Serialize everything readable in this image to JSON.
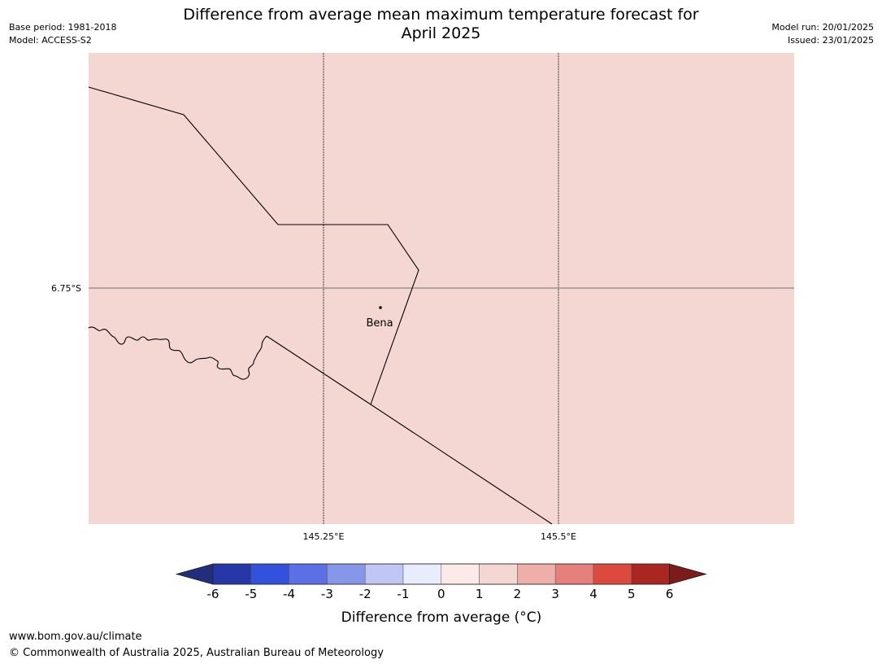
{
  "header": {
    "title_line1": "Difference from average mean maximum temperature forecast for",
    "title_line2": "April 2025",
    "base_period": "Base period: 1981-2018",
    "model": "Model: ACCESS-S2",
    "model_run": "Model run: 20/01/2025",
    "issued": "Issued: 23/01/2025"
  },
  "map": {
    "fill_color": "#f4d6d3",
    "latitude_labels": [
      "6.75°S"
    ],
    "longitude_labels": [
      "145.25°E",
      "145.5°E"
    ],
    "place": {
      "name": "Bena"
    }
  },
  "legend": {
    "title": "Difference from average (°C)",
    "tick_labels": [
      "-6",
      "-5",
      "-4",
      "-3",
      "-2",
      "-1",
      "0",
      "1",
      "2",
      "3",
      "4",
      "5",
      "6"
    ],
    "under_color": "#222d7b",
    "over_color": "#7a1c1a",
    "colors": [
      "#2638a8",
      "#3251dd",
      "#5b70e5",
      "#8697ea",
      "#c0c7f4",
      "#e9ecfc",
      "#fbeae8",
      "#f4d6d3",
      "#eeafaa",
      "#e6807a",
      "#dc4a3e",
      "#aa2620"
    ]
  },
  "footer": {
    "url": "www.bom.gov.au/climate",
    "copyright": "© Commonwealth of Australia 2025, Australian Bureau of Meteorology"
  }
}
